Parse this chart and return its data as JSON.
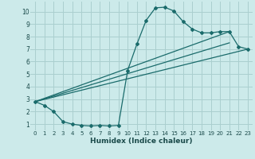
{
  "xlabel": "Humidex (Indice chaleur)",
  "bg_color": "#cceaea",
  "grid_color": "#aacfcf",
  "line_color": "#1a6b6b",
  "xlim": [
    -0.5,
    23.5
  ],
  "ylim": [
    0.5,
    10.8
  ],
  "xticks": [
    0,
    1,
    2,
    3,
    4,
    5,
    6,
    7,
    8,
    9,
    10,
    11,
    12,
    13,
    14,
    15,
    16,
    17,
    18,
    19,
    20,
    21,
    22,
    23
  ],
  "yticks": [
    1,
    2,
    3,
    4,
    5,
    6,
    7,
    8,
    9,
    10
  ],
  "line1_x": [
    0,
    1,
    2,
    3,
    4,
    5,
    6,
    7,
    8,
    9,
    10,
    11,
    12,
    13,
    14,
    15,
    16,
    17,
    18,
    19,
    20,
    21,
    22,
    23
  ],
  "line1_y": [
    2.8,
    2.5,
    2.0,
    1.2,
    1.0,
    0.9,
    0.85,
    0.9,
    0.85,
    0.9,
    5.3,
    7.4,
    9.3,
    10.3,
    10.35,
    10.05,
    9.2,
    8.6,
    8.3,
    8.3,
    8.4,
    8.4,
    7.2,
    7.0
  ],
  "line2_x": [
    0,
    23
  ],
  "line2_y": [
    2.8,
    7.0
  ],
  "line3_x": [
    0,
    21
  ],
  "line3_y": [
    2.8,
    8.4
  ],
  "line4_x": [
    0,
    21
  ],
  "line4_y": [
    2.8,
    7.5
  ]
}
